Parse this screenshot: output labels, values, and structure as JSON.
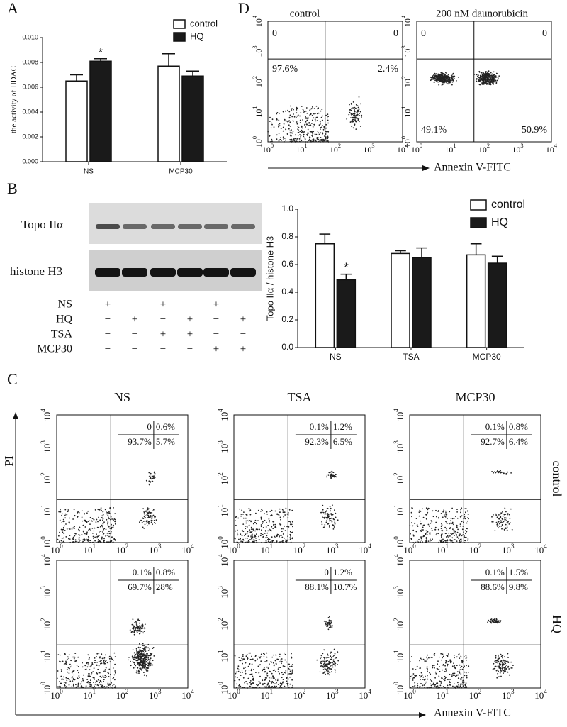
{
  "panel_labels": [
    "A",
    "B",
    "C",
    "D"
  ],
  "chart_data": [
    {
      "type": "bar",
      "ylabel": "the activity of HDAC",
      "categories": [
        "NS",
        "MCP30"
      ],
      "series": [
        {
          "name": "control",
          "color": "#ffffff",
          "values": [
            0.0065,
            0.0077
          ],
          "errors": [
            0.0005,
            0.001
          ],
          "annotations": [
            null,
            null
          ]
        },
        {
          "name": "HQ",
          "color": "#1a1a1a",
          "values": [
            0.0081,
            0.0069
          ],
          "errors": [
            0.0002,
            0.0004
          ],
          "annotations": [
            "*",
            null
          ]
        }
      ],
      "ylim": [
        0,
        0.01
      ],
      "yticks": [
        {
          "value": 0,
          "label": "0.000"
        },
        {
          "value": 0.002,
          "label": "0.002"
        },
        {
          "value": 0.004,
          "label": "0.004"
        },
        {
          "value": 0.006,
          "label": "0.006"
        },
        {
          "value": 0.008,
          "label": "0.008"
        },
        {
          "value": 0.01,
          "label": "0.010"
        }
      ],
      "legend": "top-right"
    },
    {
      "type": "bar",
      "ylabel": "Topo IIα / histone H3",
      "categories": [
        "NS",
        "TSA",
        "MCP30"
      ],
      "series": [
        {
          "name": "control",
          "color": "#ffffff",
          "values": [
            0.75,
            0.68,
            0.67
          ],
          "errors": [
            0.07,
            0.02,
            0.08
          ],
          "annotations": [
            null,
            null,
            null
          ]
        },
        {
          "name": "HQ",
          "color": "#1a1a1a",
          "values": [
            0.49,
            0.65,
            0.61
          ],
          "errors": [
            0.04,
            0.07,
            0.05
          ],
          "annotations": [
            "*",
            null,
            null
          ]
        }
      ],
      "ylim": [
        0,
        1
      ],
      "yticks": [
        {
          "value": 0,
          "label": "0.0"
        },
        {
          "value": 0.2,
          "label": "0.2"
        },
        {
          "value": 0.4,
          "label": "0.4"
        },
        {
          "value": 0.6,
          "label": "0.6"
        },
        {
          "value": 0.8,
          "label": "0.8"
        },
        {
          "value": 1,
          "label": "1.0"
        }
      ],
      "legend": "top-right"
    }
  ],
  "blot": {
    "rows": [
      "Topo IIα",
      "histone H3"
    ],
    "treatments": [
      {
        "name": "NS",
        "signs": [
          "+",
          "−",
          "+",
          "−",
          "+",
          "−"
        ]
      },
      {
        "name": "HQ",
        "signs": [
          "−",
          "+",
          "−",
          "+",
          "−",
          "+"
        ]
      },
      {
        "name": "TSA",
        "signs": [
          "−",
          "−",
          "+",
          "+",
          "−",
          "−"
        ]
      },
      {
        "name": "MCP30",
        "signs": [
          "−",
          "−",
          "−",
          "−",
          "+",
          "+"
        ]
      }
    ]
  },
  "flow_axis_ticks": [
    {
      "base": "10",
      "exp": "0"
    },
    {
      "base": "10",
      "exp": "1"
    },
    {
      "base": "10",
      "exp": "2"
    },
    {
      "base": "10",
      "exp": "3"
    },
    {
      "base": "10",
      "exp": "4"
    }
  ],
  "panel_c": {
    "columns": [
      "NS",
      "TSA",
      "MCP30"
    ],
    "rows": [
      "control",
      "HQ"
    ],
    "y_axis_label": "PI",
    "x_axis_label": "Annexin V-FITC",
    "plots": [
      [
        {
          "ul": "0",
          "ur": "0.6%",
          "ll": "93.7%",
          "lr": "5.7%"
        },
        {
          "ul": "0.1%",
          "ur": "1.2%",
          "ll": "92.3%",
          "lr": "6.5%"
        },
        {
          "ul": "0.1%",
          "ur": "0.8%",
          "ll": "92.7%",
          "lr": "6.4%"
        }
      ],
      [
        {
          "ul": "0.1%",
          "ur": "0.8%",
          "ll": "69.7%",
          "lr": "28%"
        },
        {
          "ul": "0",
          "ur": "1.2%",
          "ll": "88.1%",
          "lr": "10.7%"
        },
        {
          "ul": "0.1%",
          "ur": "1.5%",
          "ll": "88.6%",
          "lr": "9.8%"
        }
      ]
    ]
  },
  "panel_d": {
    "x_axis_label": "Annexin V-FITC",
    "plots": [
      {
        "title": "control",
        "ul": "0",
        "ur": "0",
        "ll": "97.6%",
        "lr": "2.4%"
      },
      {
        "title": "200 nM daunorubicin",
        "ul": "0",
        "ur": "0",
        "ll": "49.1%",
        "lr": "50.9%"
      }
    ]
  }
}
